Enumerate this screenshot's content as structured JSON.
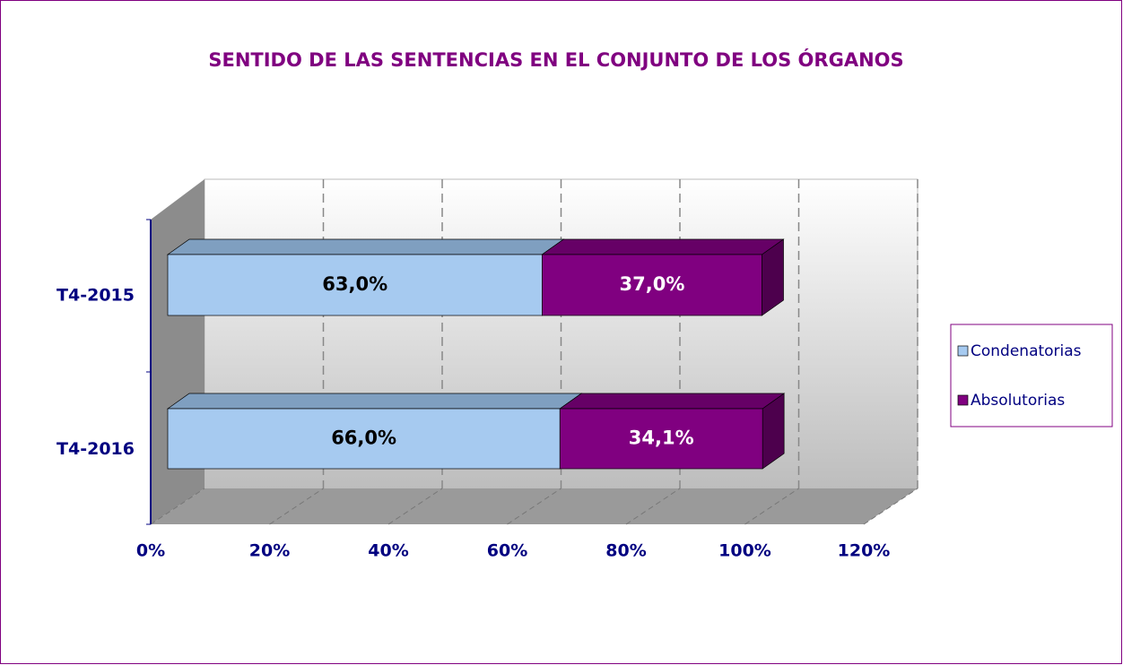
{
  "chart_data": {
    "type": "bar3d_stacked_horizontal",
    "title": "SENTIDO DE LAS SENTENCIAS EN EL CONJUNTO DE LOS ÓRGANOS",
    "categories": [
      "T4-2015",
      "T4-2016"
    ],
    "series": [
      {
        "name": "Condenatorias",
        "color": "#a6caf0",
        "values": [
          63.0,
          66.0
        ],
        "value_labels": [
          "63,0%",
          "66,0%"
        ]
      },
      {
        "name": "Absolutorias",
        "color": "#800080",
        "values": [
          37.0,
          34.1
        ],
        "value_labels": [
          "37,0%",
          "34,1%"
        ]
      }
    ],
    "xlim": [
      0,
      120
    ],
    "xticks": [
      {
        "value": 0,
        "label": "0%"
      },
      {
        "value": 20,
        "label": "20%"
      },
      {
        "value": 40,
        "label": "40%"
      },
      {
        "value": 60,
        "label": "60%"
      },
      {
        "value": 80,
        "label": "80%"
      },
      {
        "value": 100,
        "label": "100%"
      },
      {
        "value": 120,
        "label": "120%"
      }
    ],
    "grid": true,
    "legend": "right"
  }
}
